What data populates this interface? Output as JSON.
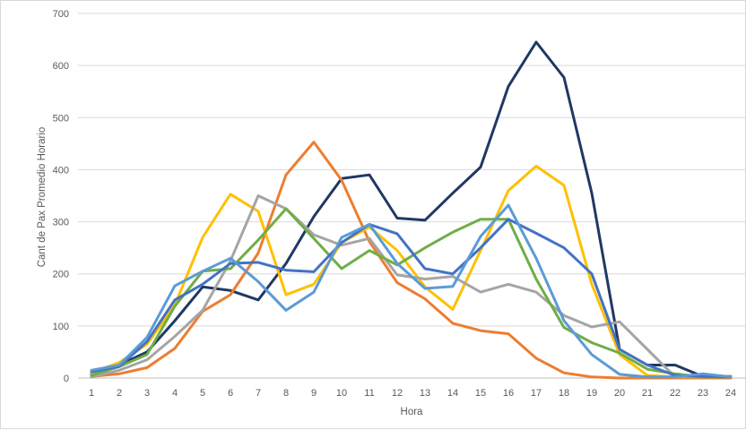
{
  "chart_data": {
    "type": "line",
    "title": "",
    "xlabel": "Hora",
    "ylabel": "Cant  de Pax Promedio Horario",
    "x": [
      1,
      2,
      3,
      4,
      5,
      6,
      7,
      8,
      9,
      10,
      11,
      12,
      13,
      14,
      15,
      16,
      17,
      18,
      19,
      20,
      21,
      22,
      23,
      24
    ],
    "ylim": [
      0,
      700
    ],
    "yticks": [
      0,
      100,
      200,
      300,
      400,
      500,
      600,
      700
    ],
    "grid": "horizontal",
    "legend": "none",
    "series": [
      {
        "color": "#203864",
        "values": [
          8,
          25,
          50,
          110,
          175,
          168,
          150,
          220,
          310,
          383,
          390,
          307,
          303,
          355,
          405,
          560,
          645,
          577,
          355,
          55,
          25,
          25,
          3,
          3
        ]
      },
      {
        "color": "#ED7D31",
        "values": [
          3,
          8,
          20,
          57,
          128,
          160,
          240,
          390,
          453,
          380,
          262,
          183,
          152,
          105,
          91,
          85,
          38,
          10,
          2,
          0,
          0,
          0,
          0,
          0
        ]
      },
      {
        "color": "#FFC000",
        "values": [
          10,
          30,
          65,
          140,
          270,
          353,
          320,
          160,
          180,
          260,
          290,
          245,
          175,
          132,
          245,
          360,
          407,
          370,
          180,
          45,
          5,
          2,
          2,
          2
        ]
      },
      {
        "color": "#A5A5A5",
        "values": [
          2,
          15,
          35,
          80,
          130,
          225,
          350,
          325,
          275,
          255,
          268,
          198,
          190,
          195,
          165,
          180,
          165,
          120,
          98,
          108,
          55,
          2,
          2,
          2
        ]
      },
      {
        "color": "#70AD47",
        "values": [
          5,
          22,
          45,
          138,
          205,
          210,
          265,
          325,
          268,
          210,
          245,
          217,
          250,
          280,
          305,
          305,
          190,
          97,
          68,
          48,
          17,
          8,
          2,
          2
        ]
      },
      {
        "color": "#4472C4",
        "values": [
          12,
          22,
          70,
          150,
          180,
          220,
          222,
          207,
          204,
          260,
          295,
          277,
          210,
          200,
          250,
          305,
          278,
          250,
          200,
          55,
          25,
          5,
          3,
          2
        ]
      },
      {
        "color": "#5B9BD5",
        "values": [
          15,
          25,
          78,
          177,
          205,
          230,
          185,
          130,
          165,
          270,
          295,
          220,
          172,
          176,
          272,
          332,
          230,
          110,
          45,
          7,
          2,
          2,
          8,
          2
        ]
      }
    ]
  }
}
